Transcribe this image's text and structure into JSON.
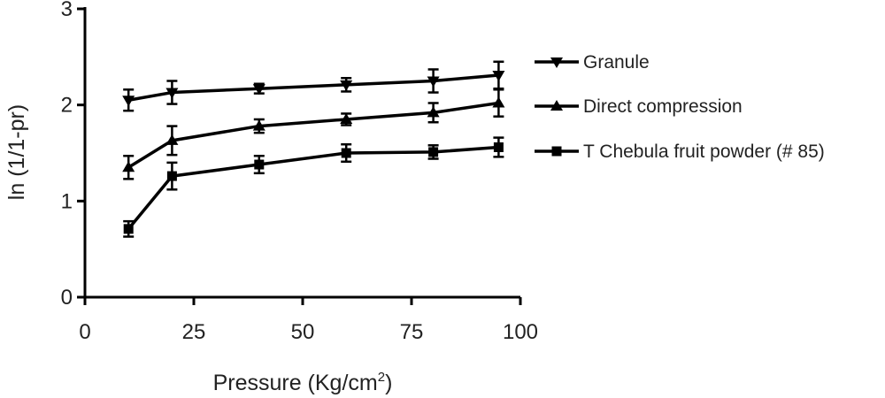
{
  "chart_data": {
    "type": "line",
    "title": "",
    "xlabel": "Pressure (Kg/cm",
    "xlabel_sup": "2",
    "xlabel_end": ")",
    "ylabel": "ln (1/1-pr)",
    "xlim": [
      0,
      100
    ],
    "ylim": [
      0,
      3
    ],
    "xticks": [
      0,
      25,
      50,
      75,
      100
    ],
    "yticks": [
      0,
      1,
      2,
      3
    ],
    "x": [
      10,
      20,
      40,
      60,
      80,
      95
    ],
    "grid": false,
    "legend_position": "right",
    "series": [
      {
        "name": "Granule",
        "marker": "triangle-down",
        "values": [
          2.05,
          2.13,
          2.17,
          2.21,
          2.25,
          2.31
        ],
        "errors": [
          0.11,
          0.12,
          0.05,
          0.07,
          0.12,
          0.14
        ]
      },
      {
        "name": "Direct compression",
        "marker": "triangle-up",
        "values": [
          1.35,
          1.63,
          1.78,
          1.85,
          1.92,
          2.02
        ],
        "errors": [
          0.12,
          0.15,
          0.07,
          0.06,
          0.1,
          0.14
        ]
      },
      {
        "name": "T Chebula fruit powder (# 85)",
        "marker": "square",
        "values": [
          0.71,
          1.26,
          1.38,
          1.5,
          1.51,
          1.56
        ],
        "errors": [
          0.08,
          0.14,
          0.09,
          0.09,
          0.07,
          0.1
        ]
      }
    ],
    "colors": {
      "line": "#000000",
      "text": "#222222"
    }
  }
}
